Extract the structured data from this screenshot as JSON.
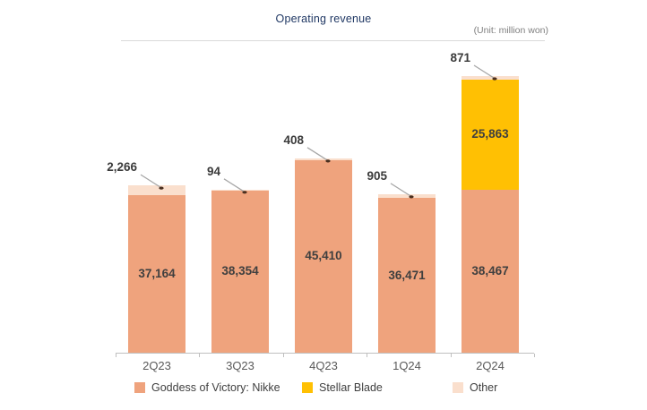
{
  "header": {
    "title": "Operating revenue",
    "unit": "(Unit: million won)"
  },
  "chart_data": {
    "type": "bar",
    "stacked": true,
    "title": "Operating revenue",
    "unit": "million won",
    "xlabel": "",
    "ylabel": "",
    "grid": false,
    "y_axis_shown": false,
    "legend_position": "bottom",
    "categories": [
      "2Q23",
      "3Q23",
      "4Q23",
      "1Q24",
      "2Q24"
    ],
    "series": [
      {
        "name": "Goddess of Victory: Nikke",
        "color": "#EFA37D",
        "values": [
          37164,
          38354,
          45410,
          36471,
          38467
        ]
      },
      {
        "name": "Stellar Blade",
        "color": "#FFC003",
        "values": [
          0,
          0,
          0,
          0,
          25863
        ]
      },
      {
        "name": "Other",
        "color": "#FADFCD",
        "values": [
          2266,
          94,
          408,
          905,
          871
        ]
      }
    ],
    "callouts": {
      "series": "Other",
      "labels": [
        "2,266",
        "94",
        "408",
        "905",
        "871"
      ]
    },
    "inner_labels": [
      "37,164",
      "38,354",
      "45,410",
      "36,471",
      "38,467",
      "25,863"
    ],
    "colors": {
      "title": "#203864",
      "axis": "#bfbfbf",
      "leader_line": "#a6a6a6",
      "label_text": "#3b3b3b"
    }
  }
}
